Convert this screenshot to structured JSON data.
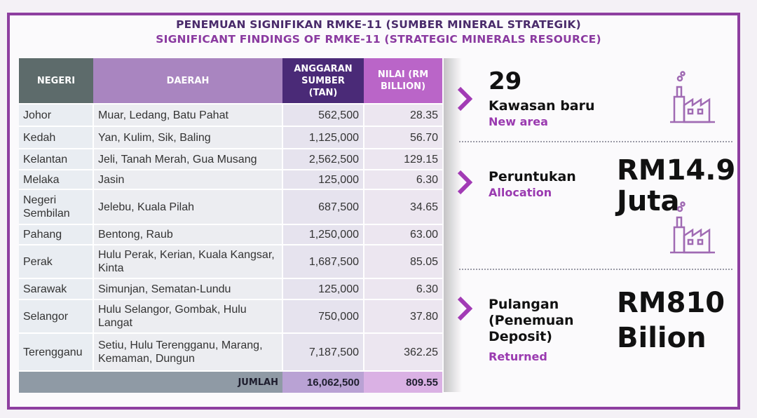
{
  "header": {
    "title_ms": "PENEMUAN SIGNIFIKAN RMKE-11 (SUMBER MINERAL STRATEGIK)",
    "title_en": "SIGNIFICANT FINDINGS OF RMKE-11 (STRATEGIC MINERALS RESOURCE)"
  },
  "table": {
    "headers": {
      "negeri": "NEGERI",
      "daerah": "DAERAH",
      "anggaran_l1": "ANGGARAN",
      "anggaran_l2": "SUMBER",
      "anggaran_l3": "(TAN)",
      "nilai_l1": "NILAI (RM",
      "nilai_l2": "BILLION)"
    },
    "rows": [
      {
        "negeri": "Johor",
        "daerah": "Muar, Ledang, Batu Pahat",
        "anggaran": "562,500",
        "nilai": "28.35"
      },
      {
        "negeri": "Kedah",
        "daerah": "Yan, Kulim, Sik, Baling",
        "anggaran": "1,125,000",
        "nilai": "56.70"
      },
      {
        "negeri": "Kelantan",
        "daerah": "Jeli, Tanah Merah, Gua Musang",
        "anggaran": "2,562,500",
        "nilai": "129.15"
      },
      {
        "negeri": "Melaka",
        "daerah": "Jasin",
        "anggaran": "125,000",
        "nilai": "6.30"
      },
      {
        "negeri": "Negeri Sembilan",
        "daerah": "Jelebu, Kuala Pilah",
        "anggaran": "687,500",
        "nilai": "34.65"
      },
      {
        "negeri": "Pahang",
        "daerah": "Bentong, Raub",
        "anggaran": "1,250,000",
        "nilai": "63.00"
      },
      {
        "negeri": "Perak",
        "daerah": "Hulu Perak, Kerian, Kuala Kangsar, Kinta",
        "anggaran": "1,687,500",
        "nilai": "85.05"
      },
      {
        "negeri": "Sarawak",
        "daerah": "Simunjan, Sematan-Lundu",
        "anggaran": "125,000",
        "nilai": "6.30"
      },
      {
        "negeri": "Selangor",
        "daerah": "Hulu Selangor, Gombak, Hulu Langat",
        "anggaran": "750,000",
        "nilai": "37.80"
      },
      {
        "negeri": "Terengganu",
        "daerah": "Setiu, Hulu Terengganu, Marang, Kemaman, Dungun",
        "anggaran": "7,187,500",
        "nilai": "362.25"
      }
    ],
    "total": {
      "label": "JUMLAH",
      "anggaran": "16,062,500",
      "nilai": "809.55"
    }
  },
  "panel": {
    "new_area": {
      "number": "29",
      "label_ms": "Kawasan baru",
      "label_en": "New area"
    },
    "allocation": {
      "label_ms": "Peruntukan",
      "label_en": "Allocation",
      "value_l1": "RM14.9",
      "value_l2": "Juta"
    },
    "returned": {
      "label_ms_l1": "Pulangan",
      "label_ms_l2": "(Penemuan",
      "label_ms_l3": "Deposit)",
      "label_en": "Returned",
      "value_l1": "RM810",
      "value_l2": "Bilion"
    }
  },
  "colors": {
    "accent": "#8e3fa0",
    "header_dark": "#4a2a77",
    "header_gray": "#5d6b6b"
  },
  "icons": [
    "chevron-right-icon",
    "factory-icon"
  ]
}
